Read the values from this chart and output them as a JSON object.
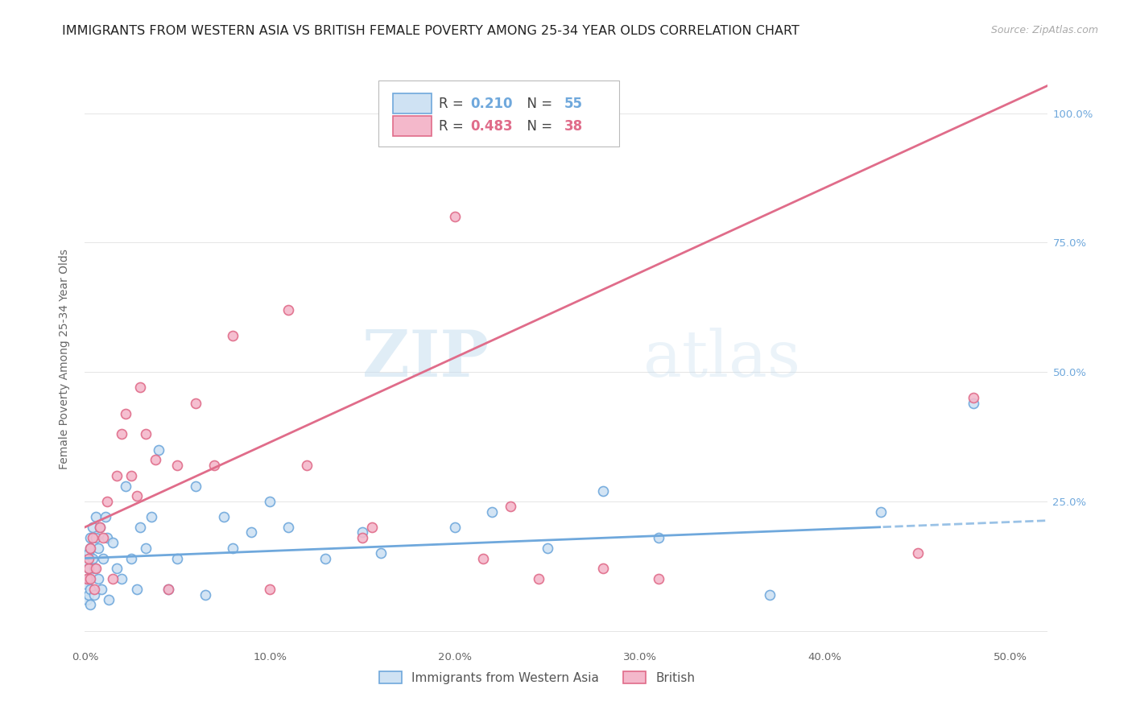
{
  "title": "IMMIGRANTS FROM WESTERN ASIA VS BRITISH FEMALE POVERTY AMONG 25-34 YEAR OLDS CORRELATION CHART",
  "source": "Source: ZipAtlas.com",
  "ylabel": "Female Poverty Among 25-34 Year Olds",
  "xticks_labels": [
    "0.0%",
    "10.0%",
    "20.0%",
    "30.0%",
    "40.0%",
    "50.0%"
  ],
  "xticks_vals": [
    0.0,
    0.1,
    0.2,
    0.3,
    0.4,
    0.5
  ],
  "yticks_right_labels": [
    "",
    "25.0%",
    "50.0%",
    "75.0%",
    "100.0%"
  ],
  "yticks_right_vals": [
    0.0,
    0.25,
    0.5,
    0.75,
    1.0
  ],
  "xlim": [
    0.0,
    0.52
  ],
  "ylim": [
    -0.03,
    1.08
  ],
  "R_blue": 0.21,
  "N_blue": 55,
  "R_pink": 0.483,
  "N_pink": 38,
  "blue_color": "#6fa8dc",
  "blue_face": "#cfe2f3",
  "pink_color": "#e06c8a",
  "pink_face": "#f4b8cb",
  "watermark_zip": "ZIP",
  "watermark_atlas": "atlas",
  "legend_blue_label": "Immigrants from Western Asia",
  "legend_pink_label": "British",
  "scatter_size": 75,
  "blue_scatter_x": [
    0.001,
    0.001,
    0.001,
    0.002,
    0.002,
    0.002,
    0.002,
    0.003,
    0.003,
    0.003,
    0.003,
    0.004,
    0.004,
    0.005,
    0.005,
    0.006,
    0.006,
    0.007,
    0.007,
    0.008,
    0.009,
    0.01,
    0.011,
    0.012,
    0.013,
    0.015,
    0.017,
    0.02,
    0.022,
    0.025,
    0.028,
    0.03,
    0.033,
    0.036,
    0.04,
    0.045,
    0.05,
    0.06,
    0.065,
    0.075,
    0.08,
    0.09,
    0.1,
    0.11,
    0.13,
    0.15,
    0.16,
    0.2,
    0.22,
    0.25,
    0.28,
    0.31,
    0.37,
    0.43,
    0.48
  ],
  "blue_scatter_y": [
    0.06,
    0.09,
    0.13,
    0.1,
    0.07,
    0.15,
    0.12,
    0.18,
    0.08,
    0.16,
    0.05,
    0.14,
    0.2,
    0.12,
    0.07,
    0.18,
    0.22,
    0.16,
    0.1,
    0.2,
    0.08,
    0.14,
    0.22,
    0.18,
    0.06,
    0.17,
    0.12,
    0.1,
    0.28,
    0.14,
    0.08,
    0.2,
    0.16,
    0.22,
    0.35,
    0.08,
    0.14,
    0.28,
    0.07,
    0.22,
    0.16,
    0.19,
    0.25,
    0.2,
    0.14,
    0.19,
    0.15,
    0.2,
    0.23,
    0.16,
    0.27,
    0.18,
    0.07,
    0.23,
    0.44
  ],
  "pink_scatter_x": [
    0.001,
    0.002,
    0.002,
    0.003,
    0.003,
    0.004,
    0.005,
    0.006,
    0.008,
    0.01,
    0.012,
    0.015,
    0.017,
    0.02,
    0.022,
    0.025,
    0.028,
    0.03,
    0.033,
    0.038,
    0.045,
    0.05,
    0.06,
    0.07,
    0.08,
    0.1,
    0.11,
    0.12,
    0.15,
    0.155,
    0.2,
    0.215,
    0.23,
    0.245,
    0.28,
    0.31,
    0.45,
    0.48
  ],
  "pink_scatter_y": [
    0.1,
    0.12,
    0.14,
    0.1,
    0.16,
    0.18,
    0.08,
    0.12,
    0.2,
    0.18,
    0.25,
    0.1,
    0.3,
    0.38,
    0.42,
    0.3,
    0.26,
    0.47,
    0.38,
    0.33,
    0.08,
    0.32,
    0.44,
    0.32,
    0.57,
    0.08,
    0.62,
    0.32,
    0.18,
    0.2,
    0.8,
    0.14,
    0.24,
    0.1,
    0.12,
    0.1,
    0.15,
    0.45
  ],
  "grid_color": "#e5e5e5",
  "title_fontsize": 11.5,
  "tick_fontsize": 9.5,
  "legend_fontsize": 12
}
